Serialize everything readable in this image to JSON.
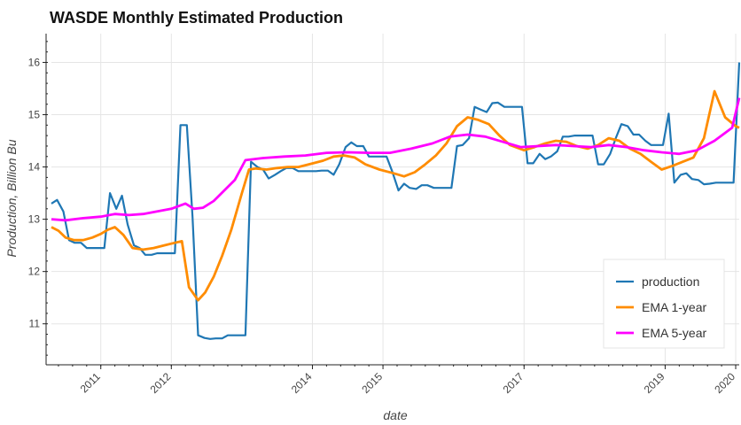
{
  "chart_data": {
    "type": "line",
    "title": "WASDE Monthly Estimated Production",
    "xlabel": "date",
    "ylabel": "Production, Billion Bu",
    "xlim": [
      2010.3,
      2020.05
    ],
    "ylim": [
      10.25,
      16.55
    ],
    "x_tick_values": [
      2011,
      2012,
      2014,
      2015,
      2017,
      2019,
      2020
    ],
    "x_tick_labels": [
      "2011",
      "2012",
      "2014",
      "2015",
      "2017",
      "2019",
      "2020"
    ],
    "y_tick_values": [
      11,
      12,
      13,
      14,
      15,
      16
    ],
    "y_tick_labels": [
      "11",
      "12",
      "13",
      "14",
      "15",
      "16"
    ],
    "grid": true,
    "legend_position": "bottom-right",
    "series": [
      {
        "name": "production",
        "color": "#1f77b4",
        "x": [
          2010.3,
          2010.38,
          2010.47,
          2010.55,
          2010.63,
          2010.72,
          2010.8,
          2010.88,
          2010.97,
          2011.05,
          2011.13,
          2011.22,
          2011.3,
          2011.38,
          2011.47,
          2011.55,
          2011.63,
          2011.72,
          2011.8,
          2011.88,
          2011.97,
          2012.05,
          2012.13,
          2012.22,
          2012.3,
          2012.38,
          2012.47,
          2012.55,
          2012.63,
          2012.72,
          2012.8,
          2012.88,
          2012.97,
          2013.05,
          2013.13,
          2013.22,
          2013.3,
          2013.38,
          2013.47,
          2013.55,
          2013.63,
          2013.72,
          2013.8,
          2013.88,
          2013.97,
          2014.05,
          2014.13,
          2014.22,
          2014.3,
          2014.38,
          2014.47,
          2014.55,
          2014.63,
          2014.72,
          2014.8,
          2014.88,
          2014.97,
          2015.05,
          2015.13,
          2015.22,
          2015.3,
          2015.38,
          2015.47,
          2015.55,
          2015.63,
          2015.72,
          2015.8,
          2015.88,
          2015.97,
          2016.05,
          2016.13,
          2016.22,
          2016.3,
          2016.38,
          2016.47,
          2016.55,
          2016.63,
          2016.72,
          2016.8,
          2016.88,
          2016.97,
          2017.05,
          2017.13,
          2017.22,
          2017.3,
          2017.38,
          2017.47,
          2017.55,
          2017.63,
          2017.72,
          2017.8,
          2017.88,
          2017.97,
          2018.05,
          2018.13,
          2018.22,
          2018.3,
          2018.38,
          2018.47,
          2018.55,
          2018.63,
          2018.72,
          2018.8,
          2018.88,
          2018.97,
          2019.05,
          2019.13,
          2019.22,
          2019.3,
          2019.38,
          2019.47,
          2019.55,
          2019.63,
          2019.72,
          2019.8,
          2019.88,
          2019.97,
          2020.05
        ],
        "y": [
          13.3,
          13.37,
          13.15,
          12.6,
          12.55,
          12.55,
          12.45,
          12.45,
          12.45,
          12.45,
          13.5,
          13.2,
          13.45,
          12.9,
          12.5,
          12.45,
          12.32,
          12.32,
          12.35,
          12.35,
          12.35,
          12.35,
          14.8,
          14.8,
          13.05,
          10.78,
          10.73,
          10.71,
          10.72,
          10.72,
          10.78,
          10.78,
          10.78,
          10.78,
          14.1,
          14.0,
          13.95,
          13.78,
          13.85,
          13.92,
          13.98,
          13.98,
          13.92,
          13.92,
          13.92,
          13.92,
          13.93,
          13.93,
          13.85,
          14.05,
          14.38,
          14.47,
          14.4,
          14.4,
          14.2,
          14.2,
          14.2,
          14.2,
          13.92,
          13.55,
          13.68,
          13.6,
          13.58,
          13.65,
          13.65,
          13.6,
          13.6,
          13.6,
          13.6,
          14.4,
          14.42,
          14.55,
          15.15,
          15.1,
          15.05,
          15.22,
          15.23,
          15.15,
          15.15,
          15.15,
          15.15,
          14.07,
          14.07,
          14.25,
          14.15,
          14.2,
          14.3,
          14.58,
          14.58,
          14.6,
          14.6,
          14.6,
          14.6,
          14.05,
          14.05,
          14.25,
          14.55,
          14.82,
          14.78,
          14.62,
          14.62,
          14.5,
          14.42,
          14.42,
          14.42,
          15.02,
          13.7,
          13.85,
          13.88,
          13.77,
          13.75,
          13.67,
          13.68,
          13.7,
          13.7,
          13.7,
          13.7,
          16.0
        ]
      },
      {
        "name": "EMA 1-year",
        "color": "#ff8c00",
        "x": [
          2010.3,
          2010.4,
          2010.5,
          2010.62,
          2010.75,
          2010.88,
          2011.0,
          2011.1,
          2011.2,
          2011.32,
          2011.45,
          2011.6,
          2011.75,
          2011.9,
          2012.05,
          2012.15,
          2012.25,
          2012.38,
          2012.48,
          2012.6,
          2012.72,
          2012.85,
          2013.0,
          2013.1,
          2013.2,
          2013.35,
          2013.5,
          2013.65,
          2013.8,
          2013.95,
          2014.15,
          2014.3,
          2014.45,
          2014.6,
          2014.75,
          2014.95,
          2015.15,
          2015.3,
          2015.45,
          2015.6,
          2015.75,
          2015.9,
          2016.05,
          2016.2,
          2016.35,
          2016.5,
          2016.65,
          2016.8,
          2017.0,
          2017.15,
          2017.3,
          2017.45,
          2017.6,
          2017.75,
          2017.9,
          2018.05,
          2018.2,
          2018.35,
          2018.5,
          2018.65,
          2018.8,
          2018.95,
          2019.1,
          2019.25,
          2019.4,
          2019.55,
          2019.7,
          2019.85,
          2020.0,
          2020.05
        ],
        "y": [
          12.85,
          12.78,
          12.65,
          12.6,
          12.6,
          12.65,
          12.72,
          12.8,
          12.85,
          12.7,
          12.45,
          12.42,
          12.45,
          12.5,
          12.55,
          12.58,
          11.7,
          11.45,
          11.6,
          11.9,
          12.3,
          12.8,
          13.5,
          13.95,
          13.97,
          13.95,
          13.98,
          14.0,
          14.0,
          14.05,
          14.12,
          14.2,
          14.22,
          14.18,
          14.05,
          13.95,
          13.88,
          13.82,
          13.9,
          14.05,
          14.22,
          14.45,
          14.78,
          14.95,
          14.9,
          14.82,
          14.6,
          14.42,
          14.32,
          14.38,
          14.45,
          14.5,
          14.48,
          14.4,
          14.35,
          14.42,
          14.55,
          14.5,
          14.35,
          14.25,
          14.1,
          13.95,
          14.02,
          14.1,
          14.18,
          14.55,
          15.45,
          14.95,
          14.78,
          14.75
        ]
      },
      {
        "name": "EMA 5-year",
        "color": "#ff00ff",
        "x": [
          2010.3,
          2010.5,
          2010.75,
          2011.0,
          2011.2,
          2011.4,
          2011.6,
          2011.8,
          2012.0,
          2012.2,
          2012.32,
          2012.45,
          2012.6,
          2012.75,
          2012.9,
          2013.05,
          2013.3,
          2013.6,
          2013.9,
          2014.2,
          2014.5,
          2014.8,
          2015.1,
          2015.4,
          2015.7,
          2015.95,
          2016.2,
          2016.45,
          2016.7,
          2016.95,
          2017.2,
          2017.45,
          2017.7,
          2017.95,
          2018.2,
          2018.45,
          2018.7,
          2018.95,
          2019.2,
          2019.45,
          2019.7,
          2019.95,
          2020.05
        ],
        "y": [
          13.0,
          12.98,
          13.02,
          13.05,
          13.1,
          13.08,
          13.1,
          13.15,
          13.2,
          13.3,
          13.2,
          13.22,
          13.35,
          13.55,
          13.75,
          14.13,
          14.17,
          14.2,
          14.22,
          14.27,
          14.28,
          14.27,
          14.27,
          14.35,
          14.45,
          14.58,
          14.62,
          14.58,
          14.48,
          14.38,
          14.4,
          14.42,
          14.4,
          14.38,
          14.42,
          14.38,
          14.32,
          14.28,
          14.25,
          14.32,
          14.5,
          14.75,
          15.32
        ]
      }
    ]
  }
}
